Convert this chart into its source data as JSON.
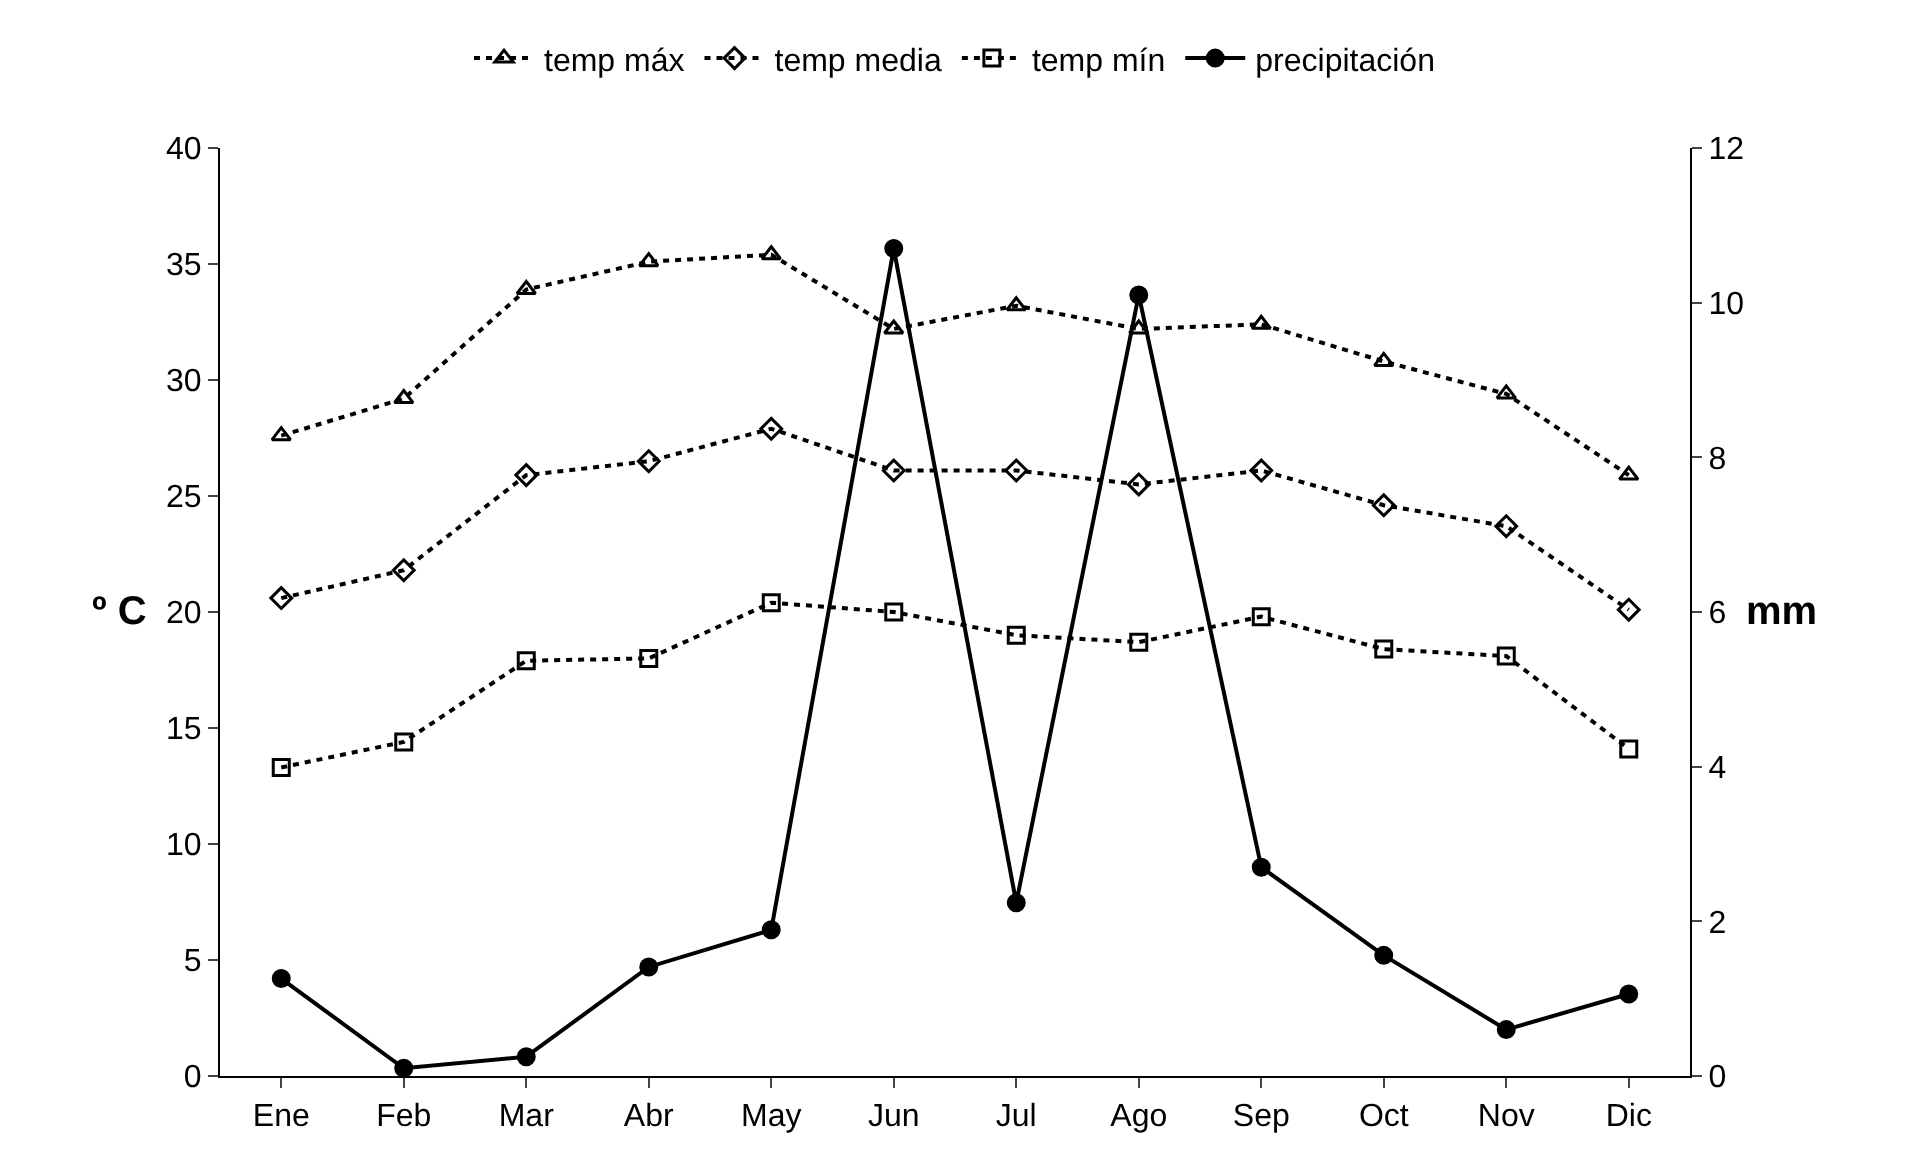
{
  "chart_data": {
    "type": "line",
    "categories": [
      "Ene",
      "Feb",
      "Mar",
      "Abr",
      "May",
      "Jun",
      "Jul",
      "Ago",
      "Sep",
      "Oct",
      "Nov",
      "Dic"
    ],
    "ylabel": "º C",
    "y2label": "mm",
    "ylim": [
      0,
      40
    ],
    "yticks": [
      0,
      5,
      10,
      15,
      20,
      25,
      30,
      35,
      40
    ],
    "y2lim": [
      0,
      12
    ],
    "y2ticks": [
      0,
      2,
      4,
      6,
      8,
      10,
      12
    ],
    "legend": "top",
    "series": [
      {
        "name": "temp máx",
        "color": "#000000",
        "marker": "triangle",
        "line_style": "dotted",
        "values": [
          27.6,
          29.2,
          33.9,
          35.1,
          35.4,
          32.2,
          33.2,
          32.2,
          32.4,
          30.8,
          29.4,
          25.9
        ]
      },
      {
        "name": "temp media",
        "color": "#000000",
        "marker": "diamond",
        "line_style": "dotted",
        "values": [
          20.6,
          21.8,
          25.9,
          26.5,
          27.9,
          26.1,
          26.1,
          25.5,
          26.1,
          24.6,
          23.7,
          20.1
        ]
      },
      {
        "name": "temp mín",
        "color": "#000000",
        "marker": "square",
        "line_style": "dotted",
        "values": [
          13.3,
          14.4,
          17.9,
          18.0,
          20.4,
          20.0,
          19.0,
          18.7,
          19.8,
          18.4,
          18.1,
          14.1
        ]
      },
      {
        "name": "precipitación",
        "color": "#000000",
        "marker": "circle",
        "line_style": "solid",
        "axis": "y2",
        "values": [
          1.26,
          0.1,
          0.25,
          1.41,
          1.89,
          10.7,
          2.24,
          10.1,
          2.7,
          1.56,
          0.6,
          1.06
        ]
      }
    ]
  }
}
